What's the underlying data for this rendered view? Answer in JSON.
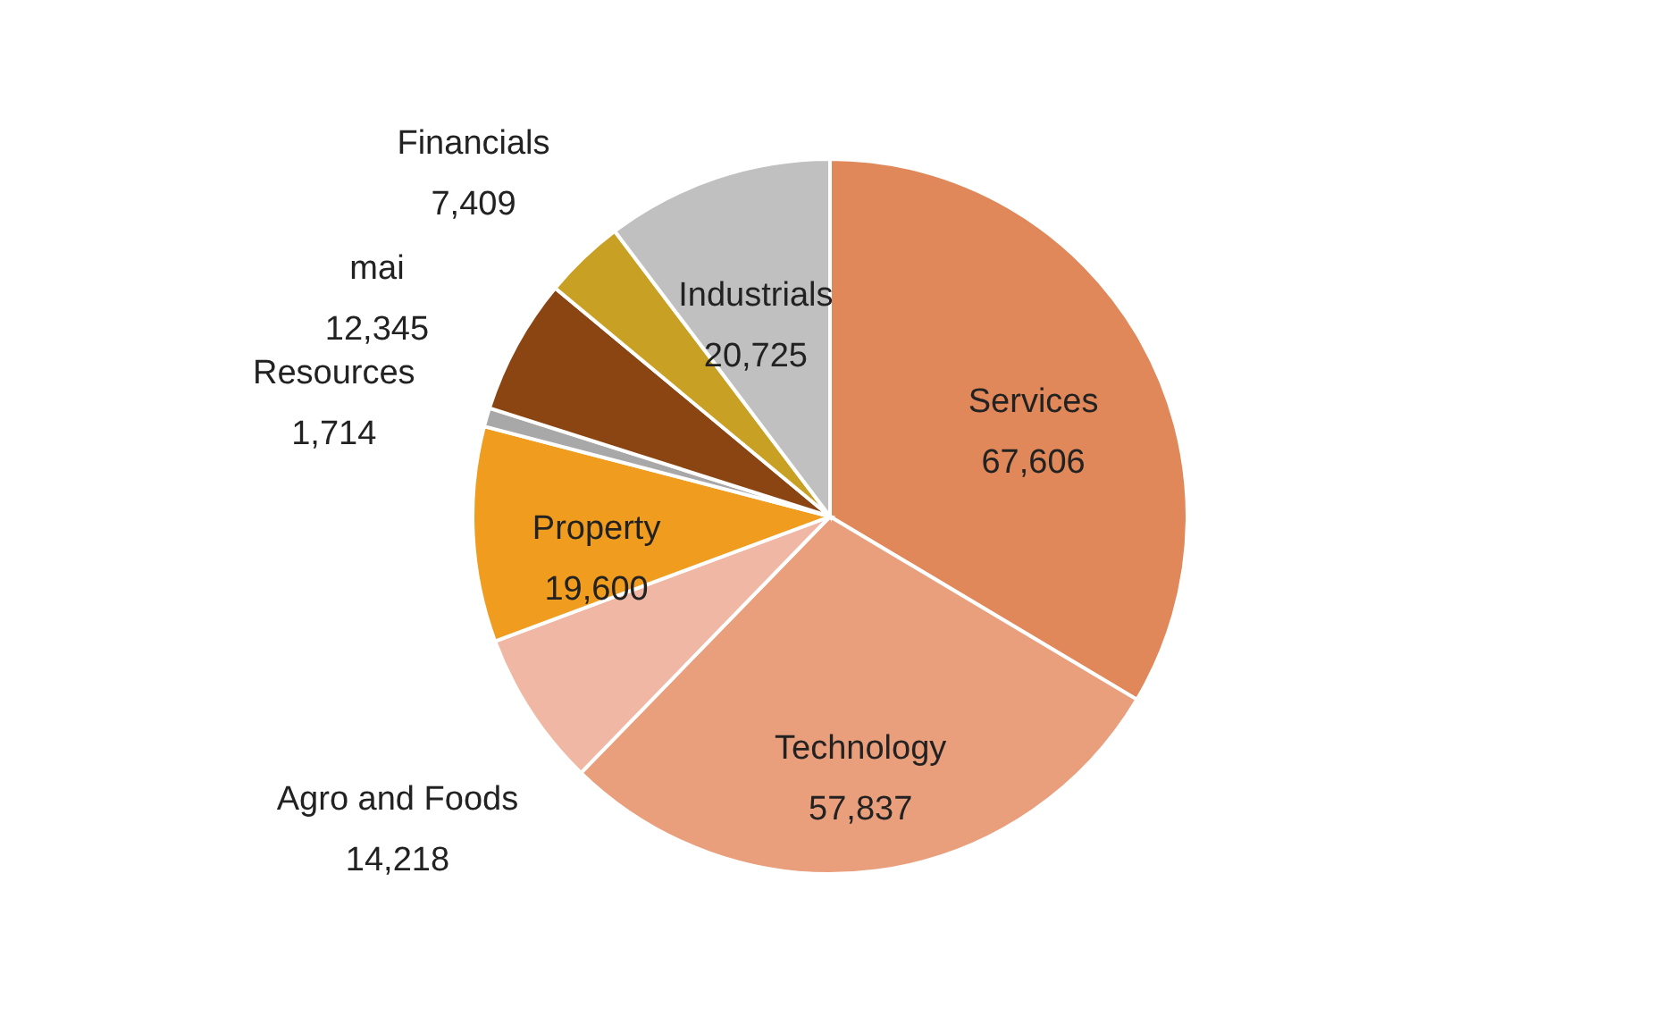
{
  "chart_data": {
    "type": "pie",
    "categories": [
      "Services",
      "Technology",
      "Agro and Foods",
      "Property",
      "Resources",
      "mai",
      "Financials",
      "Industrials"
    ],
    "values": [
      67606,
      57837,
      14218,
      19600,
      1714,
      12345,
      7409,
      20725
    ],
    "colors": [
      "#e0885a",
      "#e99e7c",
      "#f0b8a4",
      "#f09c1e",
      "#a8a8a8",
      "#8a4512",
      "#c8a024",
      "#c0c0c0"
    ],
    "value_labels": [
      "67,606",
      "57,837",
      "14,218",
      "19,600",
      "1,714",
      "12,345",
      "7,409",
      "20,725"
    ]
  }
}
